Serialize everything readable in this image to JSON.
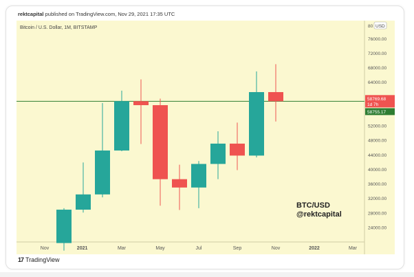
{
  "publish": {
    "author": "rektcapital",
    "text": " published on TradingView.com, Nov 29, 2021 17:35 UTC"
  },
  "footer": {
    "brand": "TradingView",
    "logo": "17"
  },
  "colors": {
    "background": "#fbf8d0",
    "up": "#26a69a",
    "down": "#ef5350",
    "hline": "#2e7d32",
    "axis_text": "#555555"
  },
  "chart_data": {
    "type": "candlestick",
    "title": "Bitcoin / U.S. Dollar, 1M, BITSTAMP",
    "currency": "USD",
    "ylim": [
      20000,
      81000
    ],
    "y_ticks": [
      24000,
      28000,
      32000,
      36000,
      40000,
      44000,
      48000,
      52000,
      56000,
      60000,
      64000,
      68000,
      72000,
      76000
    ],
    "y_tick_labels": [
      "24000.00",
      "28000.00",
      "32000.00",
      "36000.00",
      "40000.00",
      "44000.00",
      "48000.00",
      "52000.00",
      "56000.00",
      "60000.00",
      "64000.00",
      "68000.00",
      "72000.00",
      "76000.00"
    ],
    "y_top_label": "80",
    "x_tick_labels": [
      "Nov",
      "2021",
      "Mar",
      "May",
      "Jul",
      "Sep",
      "Nov",
      "2022",
      "Mar"
    ],
    "candles": [
      {
        "month": "Dec 2020",
        "open": 19700,
        "high": 29300,
        "low": 17600,
        "close": 28900
      },
      {
        "month": "Jan 2021",
        "open": 28900,
        "high": 41900,
        "low": 28100,
        "close": 33100
      },
      {
        "month": "Feb 2021",
        "open": 33100,
        "high": 58300,
        "low": 32300,
        "close": 45200
      },
      {
        "month": "Mar 2021",
        "open": 45200,
        "high": 61700,
        "low": 45000,
        "close": 58800
      },
      {
        "month": "Apr 2021",
        "open": 58800,
        "high": 64800,
        "low": 47000,
        "close": 57700
      },
      {
        "month": "May 2021",
        "open": 57700,
        "high": 59500,
        "low": 30000,
        "close": 37300
      },
      {
        "month": "Jun 2021",
        "open": 37300,
        "high": 41300,
        "low": 28800,
        "close": 35000
      },
      {
        "month": "Jul 2021",
        "open": 35000,
        "high": 42300,
        "low": 29300,
        "close": 41500
      },
      {
        "month": "Aug 2021",
        "open": 41500,
        "high": 50500,
        "low": 37300,
        "close": 47100
      },
      {
        "month": "Sep 2021",
        "open": 47100,
        "high": 52900,
        "low": 39800,
        "close": 43800
      },
      {
        "month": "Oct 2021",
        "open": 43800,
        "high": 67000,
        "low": 43300,
        "close": 61300
      },
      {
        "month": "Nov 2021",
        "open": 61300,
        "high": 69000,
        "low": 53200,
        "close": 58769.68
      }
    ],
    "price_line": 58755.17,
    "price_labels": {
      "last_price": "58769.68",
      "countdown": "1d 7h",
      "line_price": "58755.17"
    },
    "watermark": [
      "BTC/USD",
      "@rektcapital"
    ]
  }
}
